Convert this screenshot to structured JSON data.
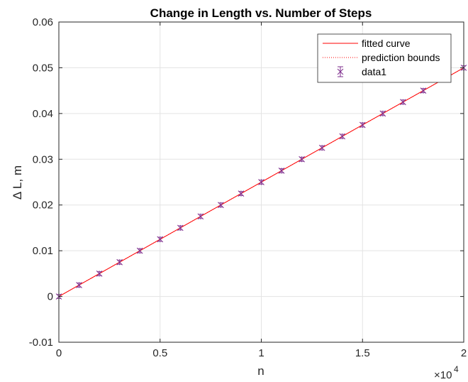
{
  "chart_data": {
    "type": "scatter",
    "title": "Change in Length vs. Number of Steps",
    "xlabel": "n",
    "ylabel": "Δ L, m",
    "x_exponent_label": "×10",
    "x_exponent_power": "4",
    "xlim": [
      0,
      20000
    ],
    "ylim": [
      -0.01,
      0.06
    ],
    "xticks": [
      0,
      5000,
      10000,
      15000,
      20000
    ],
    "xtick_labels": [
      "0",
      "0.5",
      "1",
      "1.5",
      "2"
    ],
    "yticks": [
      -0.01,
      0,
      0.01,
      0.02,
      0.03,
      0.04,
      0.05,
      0.06
    ],
    "ytick_labels": [
      "-0.01",
      "0",
      "0.01",
      "0.02",
      "0.03",
      "0.04",
      "0.05",
      "0.06"
    ],
    "grid": true,
    "legend_position": "top-right",
    "series": [
      {
        "name": "data1",
        "kind": "errorbar-points",
        "color": "#7E2F8E",
        "x": [
          0,
          1000,
          2000,
          3000,
          4000,
          5000,
          6000,
          7000,
          8000,
          9000,
          10000,
          11000,
          12000,
          13000,
          14000,
          15000,
          16000,
          17000,
          18000,
          19000,
          20000
        ],
        "y": [
          0,
          0.0025,
          0.005,
          0.0075,
          0.01,
          0.0125,
          0.015,
          0.0175,
          0.02,
          0.0225,
          0.025,
          0.0275,
          0.03,
          0.0325,
          0.035,
          0.0375,
          0.04,
          0.0425,
          0.045,
          0.0475,
          0.05
        ]
      },
      {
        "name": "fitted curve",
        "kind": "line",
        "color": "#FF0000",
        "x": [
          0,
          20000
        ],
        "y": [
          0,
          0.05
        ]
      },
      {
        "name": "prediction bounds",
        "kind": "dotted-line",
        "color": "#FF0000",
        "x": [
          0,
          20000
        ],
        "y": [
          0,
          0.05
        ]
      }
    ],
    "legend": [
      "fitted curve",
      "prediction bounds",
      "data1"
    ]
  }
}
